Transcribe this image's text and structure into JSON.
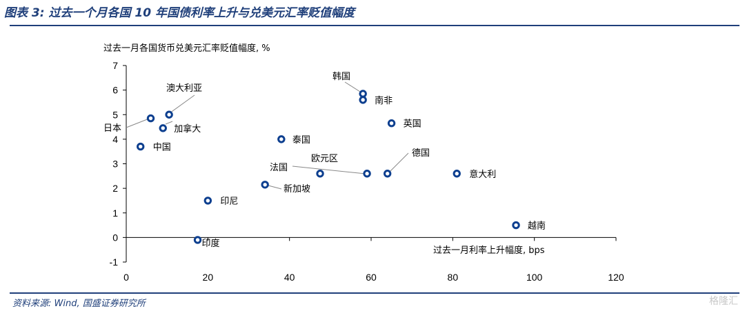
{
  "header": {
    "title": "图表 3:  过去一个月各国 10 年国债利率上升与兑美元汇率贬值幅度"
  },
  "footer": {
    "source": "资料来源: Wind, 国盛证券研究所",
    "watermark": "格隆汇"
  },
  "chart_data": {
    "type": "scatter",
    "title": "",
    "xlabel": "过去一月利率上升幅度, bps",
    "ylabel": "过去一月各国货币兑美元汇率贬值幅度, %",
    "xlim": [
      0,
      120
    ],
    "ylim": [
      -1,
      7
    ],
    "xticks": [
      0,
      20,
      40,
      60,
      80,
      100,
      120
    ],
    "yticks": [
      -1,
      0,
      1,
      2,
      3,
      4,
      5,
      6,
      7
    ],
    "grid": false,
    "marker_color": "#0d3f8f",
    "points": [
      {
        "label": "日本",
        "x": 6,
        "y": 4.85
      },
      {
        "label": "加拿大",
        "x": 9,
        "y": 4.45
      },
      {
        "label": "澳大利亚",
        "x": 10.5,
        "y": 5.0
      },
      {
        "label": "中国",
        "x": 3.5,
        "y": 3.7
      },
      {
        "label": "印尼",
        "x": 20,
        "y": 1.5
      },
      {
        "label": "印度",
        "x": 17.5,
        "y": -0.1
      },
      {
        "label": "新加坡",
        "x": 34,
        "y": 2.15
      },
      {
        "label": "泰国",
        "x": 38,
        "y": 4.0
      },
      {
        "label": "欧元区",
        "x": 47.5,
        "y": 2.6
      },
      {
        "label": "法国",
        "x": 59,
        "y": 2.6
      },
      {
        "label": "德国",
        "x": 64,
        "y": 2.6
      },
      {
        "label": "韩国",
        "x": 58,
        "y": 5.85
      },
      {
        "label": "南非",
        "x": 58,
        "y": 5.6
      },
      {
        "label": "英国",
        "x": 65,
        "y": 4.65
      },
      {
        "label": "意大利",
        "x": 81,
        "y": 2.6
      },
      {
        "label": "越南",
        "x": 95.5,
        "y": 0.5
      }
    ]
  }
}
